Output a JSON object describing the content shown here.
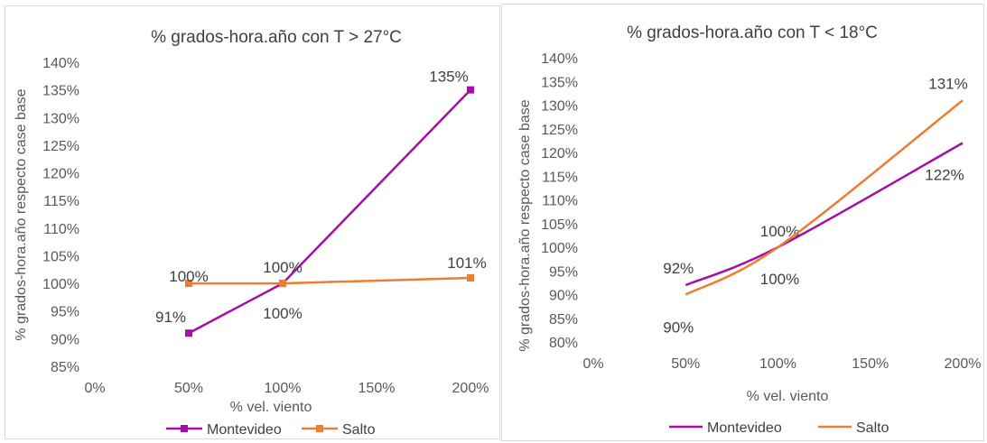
{
  "chart_data": [
    {
      "type": "line",
      "title": "% grados-hora.año  con T > 27°C",
      "xlabel": "% vel. viento",
      "ylabel": "% grados-hora.año respecto case base",
      "categories": [
        "0%",
        "50%",
        "100%",
        "150%",
        "200%"
      ],
      "x": [
        0,
        50,
        100,
        150,
        200
      ],
      "xlim": [
        0,
        200
      ],
      "ylim": [
        85,
        140
      ],
      "yticks": [
        "85%",
        "90%",
        "95%",
        "100%",
        "105%",
        "110%",
        "115%",
        "120%",
        "125%",
        "130%",
        "135%",
        "140%"
      ],
      "grid": false,
      "legend": "bottom",
      "markers": true,
      "series": [
        {
          "name": "Montevideo",
          "color": "#A50FA8",
          "points": [
            [
              50,
              91
            ],
            [
              100,
              100
            ],
            [
              200,
              135
            ]
          ],
          "labels": [
            "91%",
            "100%",
            "135%"
          ]
        },
        {
          "name": "Salto",
          "color": "#ED7D31",
          "points": [
            [
              50,
              100
            ],
            [
              100,
              100
            ],
            [
              200,
              101
            ]
          ],
          "labels": [
            "100%",
            "100%",
            "101%"
          ]
        }
      ]
    },
    {
      "type": "line",
      "title": "% grados-hora.año  con T < 18°C",
      "xlabel": "% vel. viento",
      "ylabel": "% grados-hora.año respecto case base",
      "categories": [
        "0%",
        "50%",
        "100%",
        "150%",
        "200%"
      ],
      "x": [
        0,
        50,
        100,
        150,
        200
      ],
      "xlim": [
        0,
        200
      ],
      "ylim": [
        80,
        140
      ],
      "yticks": [
        "80%",
        "85%",
        "90%",
        "95%",
        "100%",
        "105%",
        "110%",
        "115%",
        "120%",
        "125%",
        "130%",
        "135%",
        "140%"
      ],
      "grid": false,
      "legend": "bottom",
      "markers": false,
      "smooth": true,
      "series": [
        {
          "name": "Montevideo",
          "color": "#A50FA8",
          "points": [
            [
              50,
              92
            ],
            [
              100,
              100
            ],
            [
              200,
              122
            ]
          ],
          "labels": [
            "92%",
            "100%",
            "122%"
          ]
        },
        {
          "name": "Salto",
          "color": "#ED7D31",
          "points": [
            [
              50,
              90
            ],
            [
              100,
              100
            ],
            [
              200,
              131
            ]
          ],
          "labels": [
            "90%",
            "100%",
            "131%"
          ]
        }
      ]
    }
  ]
}
